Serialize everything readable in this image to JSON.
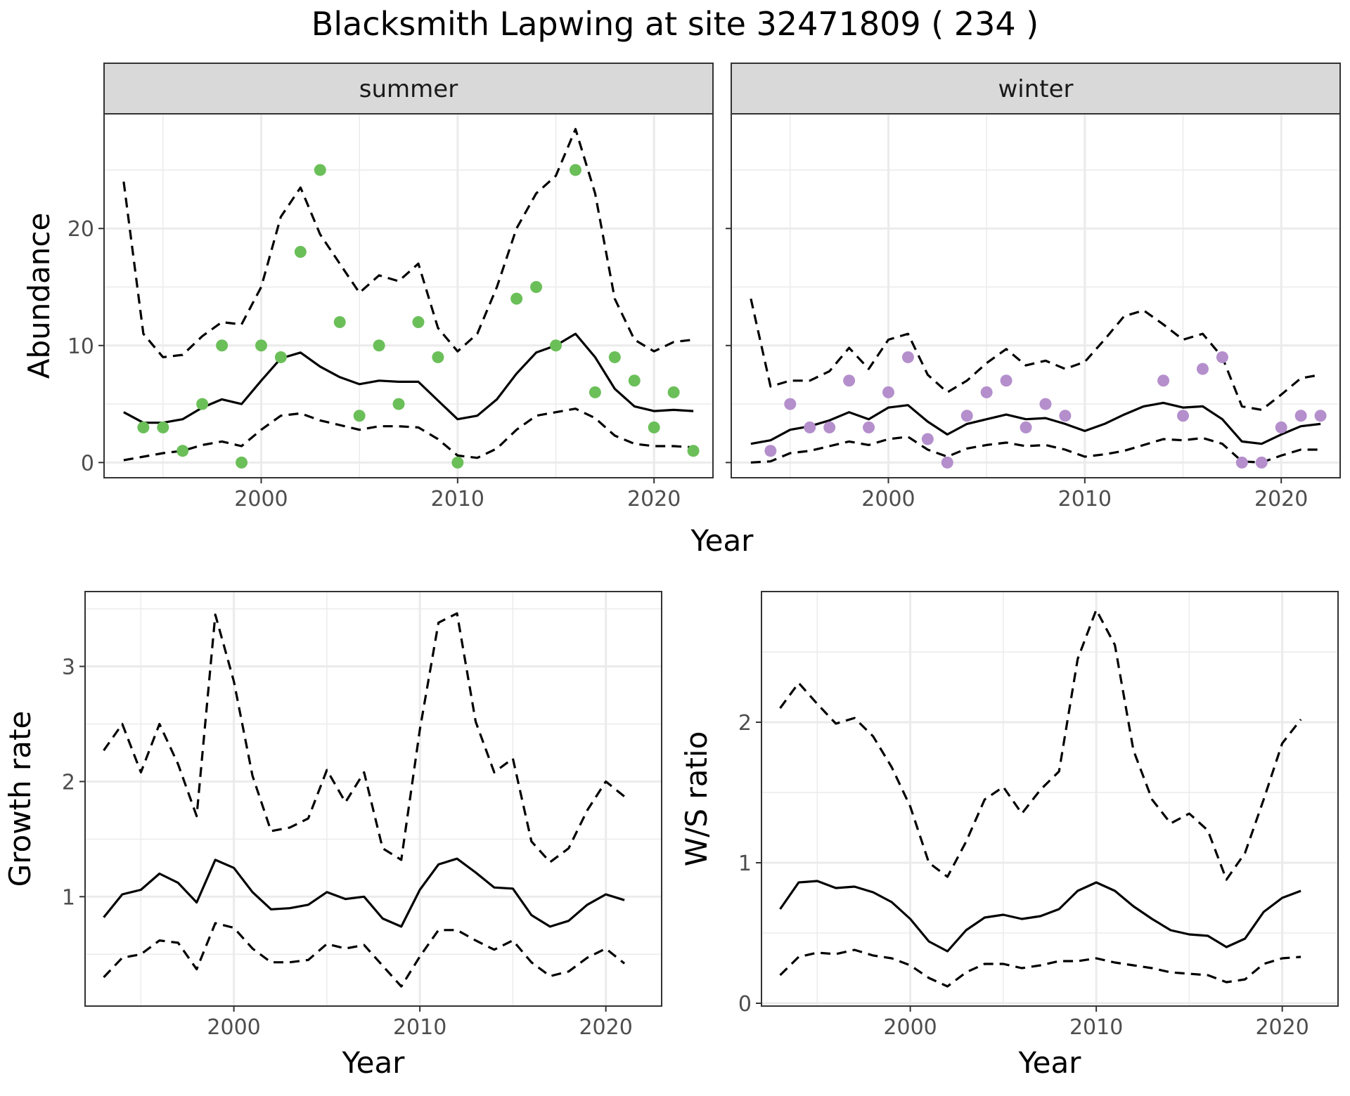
{
  "title": "Blacksmith Lapwing at site 32471809 ( 234 )",
  "colors": {
    "summer_points": "#6bbf59",
    "winter_points": "#b48fcc",
    "lines": "#000000"
  },
  "chart_data": [
    {
      "type": "line",
      "facet": "summer",
      "xlabel": "Year",
      "ylabel": "Abundance",
      "xlim": [
        1992,
        2023
      ],
      "ylim": [
        -1.3,
        29.8
      ],
      "x_ticks": [
        2000,
        2010,
        2020
      ],
      "y_ticks": [
        0,
        10,
        20
      ],
      "grid": true,
      "observed": {
        "x": [
          1994,
          1995,
          1996,
          1997,
          1998,
          1999,
          2000,
          2001,
          2002,
          2003,
          2004,
          2005,
          2006,
          2007,
          2008,
          2009,
          2010,
          2013,
          2014,
          2015,
          2016,
          2017,
          2018,
          2019,
          2020,
          2021,
          2022
        ],
        "y": [
          3,
          3,
          1,
          5,
          10,
          0,
          10,
          9,
          18,
          25,
          12,
          4,
          10,
          5,
          12,
          9,
          0,
          14,
          15,
          10,
          25,
          6,
          9,
          7,
          3,
          6,
          1
        ]
      },
      "series": [
        {
          "x": [
            1993,
            1994,
            1995,
            1996,
            1997,
            1998,
            1999,
            2000,
            2001,
            2002,
            2003,
            2004,
            2005,
            2006,
            2007,
            2008,
            2009,
            2010,
            2011,
            2012,
            2013,
            2014,
            2015,
            2016,
            2017,
            2018,
            2019,
            2020,
            2021,
            2022
          ],
          "values": [
            4.3,
            3.4,
            3.4,
            3.7,
            4.7,
            5.4,
            5.0,
            7.0,
            8.9,
            9.4,
            8.2,
            7.3,
            6.7,
            7.0,
            6.9,
            6.9,
            5.3,
            3.7,
            4.0,
            5.4,
            7.6,
            9.4,
            10.0,
            11.0,
            9.0,
            6.3,
            4.8,
            4.4,
            4.5,
            4.4
          ],
          "style": "solid"
        },
        {
          "x": [
            1993,
            1994,
            1995,
            1996,
            1997,
            1998,
            1999,
            2000,
            2001,
            2002,
            2003,
            2004,
            2005,
            2006,
            2007,
            2008,
            2009,
            2010,
            2011,
            2012,
            2013,
            2014,
            2015,
            2016,
            2017,
            2018,
            2019,
            2020,
            2021,
            2022
          ],
          "values": [
            24.0,
            11.0,
            9.0,
            9.2,
            10.8,
            12.0,
            11.8,
            15.0,
            21.0,
            23.5,
            19.5,
            17.0,
            14.5,
            16.0,
            15.5,
            17.0,
            11.5,
            9.5,
            11.0,
            15.0,
            20.0,
            23.0,
            24.5,
            28.5,
            23.0,
            14.0,
            10.5,
            9.5,
            10.3,
            10.5
          ],
          "style": "dashed"
        },
        {
          "x": [
            1993,
            1994,
            1995,
            1996,
            1997,
            1998,
            1999,
            2000,
            2001,
            2002,
            2003,
            2004,
            2005,
            2006,
            2007,
            2008,
            2009,
            2010,
            2011,
            2012,
            2013,
            2014,
            2015,
            2016,
            2017,
            2018,
            2019,
            2020,
            2021,
            2022
          ],
          "values": [
            0.2,
            0.5,
            0.8,
            1.0,
            1.5,
            1.8,
            1.4,
            2.8,
            4.0,
            4.2,
            3.6,
            3.2,
            2.8,
            3.1,
            3.1,
            3.0,
            2.0,
            0.6,
            0.4,
            1.2,
            2.8,
            4.0,
            4.3,
            4.6,
            3.8,
            2.3,
            1.6,
            1.4,
            1.4,
            1.3
          ],
          "style": "dashed"
        }
      ]
    },
    {
      "type": "line",
      "facet": "winter",
      "xlabel": "Year",
      "ylabel": "Abundance",
      "xlim": [
        1992,
        2023
      ],
      "ylim": [
        -1.3,
        29.8
      ],
      "x_ticks": [
        2000,
        2010,
        2020
      ],
      "y_ticks": [
        0,
        10,
        20
      ],
      "grid": true,
      "observed": {
        "x": [
          1994,
          1995,
          1996,
          1997,
          1998,
          1999,
          2000,
          2001,
          2002,
          2003,
          2004,
          2005,
          2006,
          2007,
          2008,
          2009,
          2014,
          2015,
          2016,
          2017,
          2018,
          2019,
          2020,
          2021,
          2022
        ],
        "y": [
          1,
          5,
          3,
          3,
          7,
          3,
          6,
          9,
          2,
          0,
          4,
          6,
          7,
          3,
          5,
          4,
          7,
          4,
          8,
          9,
          0,
          0,
          3,
          4,
          4
        ]
      },
      "series": [
        {
          "x": [
            1993,
            1994,
            1995,
            1996,
            1997,
            1998,
            1999,
            2000,
            2001,
            2002,
            2003,
            2004,
            2005,
            2006,
            2007,
            2008,
            2009,
            2010,
            2011,
            2012,
            2013,
            2014,
            2015,
            2016,
            2017,
            2018,
            2019,
            2020,
            2021,
            2022
          ],
          "values": [
            1.6,
            1.9,
            2.8,
            3.1,
            3.6,
            4.3,
            3.7,
            4.7,
            4.9,
            3.5,
            2.4,
            3.3,
            3.7,
            4.1,
            3.7,
            3.8,
            3.3,
            2.7,
            3.3,
            4.1,
            4.8,
            5.1,
            4.7,
            4.8,
            3.7,
            1.8,
            1.6,
            2.4,
            3.1,
            3.3
          ],
          "style": "solid"
        },
        {
          "x": [
            1993,
            1994,
            1995,
            1996,
            1997,
            1998,
            1999,
            2000,
            2001,
            2002,
            2003,
            2004,
            2005,
            2006,
            2007,
            2008,
            2009,
            2010,
            2011,
            2012,
            2013,
            2014,
            2015,
            2016,
            2017,
            2018,
            2019,
            2020,
            2021,
            2022
          ],
          "values": [
            14.0,
            6.5,
            7.0,
            7.0,
            7.8,
            9.8,
            8.0,
            10.5,
            11.0,
            7.5,
            6.0,
            7.0,
            8.5,
            9.7,
            8.3,
            8.7,
            8.0,
            8.6,
            10.5,
            12.5,
            13.0,
            11.8,
            10.5,
            11.0,
            9.0,
            4.8,
            4.5,
            5.8,
            7.2,
            7.5
          ],
          "style": "dashed"
        },
        {
          "x": [
            1993,
            1994,
            1995,
            1996,
            1997,
            1998,
            1999,
            2000,
            2001,
            2002,
            2003,
            2004,
            2005,
            2006,
            2007,
            2008,
            2009,
            2010,
            2011,
            2012,
            2013,
            2014,
            2015,
            2016,
            2017,
            2018,
            2019,
            2020,
            2021,
            2022
          ],
          "values": [
            0.0,
            0.1,
            0.8,
            1.0,
            1.4,
            1.8,
            1.5,
            2.0,
            2.2,
            1.1,
            0.5,
            1.2,
            1.5,
            1.7,
            1.4,
            1.5,
            1.1,
            0.5,
            0.7,
            1.0,
            1.5,
            2.0,
            1.9,
            2.1,
            1.6,
            0.1,
            0.0,
            0.6,
            1.1,
            1.1
          ],
          "style": "dashed"
        }
      ]
    },
    {
      "type": "line",
      "xlabel": "Year",
      "ylabel": "Growth rate",
      "xlim": [
        1992,
        2023
      ],
      "ylim": [
        0.05,
        3.65
      ],
      "x_ticks": [
        2000,
        2010,
        2020
      ],
      "y_ticks": [
        1,
        2,
        3
      ],
      "grid": true,
      "series": [
        {
          "x": [
            1993,
            1994,
            1995,
            1996,
            1997,
            1998,
            1999,
            2000,
            2001,
            2002,
            2003,
            2004,
            2005,
            2006,
            2007,
            2008,
            2009,
            2010,
            2011,
            2012,
            2013,
            2014,
            2015,
            2016,
            2017,
            2018,
            2019,
            2020,
            2021
          ],
          "values": [
            0.82,
            1.02,
            1.06,
            1.2,
            1.12,
            0.95,
            1.32,
            1.25,
            1.04,
            0.89,
            0.9,
            0.93,
            1.04,
            0.98,
            1.0,
            0.81,
            0.74,
            1.06,
            1.28,
            1.33,
            1.21,
            1.08,
            1.07,
            0.84,
            0.74,
            0.79,
            0.93,
            1.02,
            0.97
          ],
          "style": "solid"
        },
        {
          "x": [
            1993,
            1994,
            1995,
            1996,
            1997,
            1998,
            1999,
            2000,
            2001,
            2002,
            2003,
            2004,
            2005,
            2006,
            2007,
            2008,
            2009,
            2010,
            2011,
            2012,
            2013,
            2014,
            2015,
            2016,
            2017,
            2018,
            2019,
            2020,
            2021
          ],
          "values": [
            2.27,
            2.5,
            2.08,
            2.5,
            2.15,
            1.7,
            3.45,
            2.87,
            2.05,
            1.57,
            1.6,
            1.68,
            2.1,
            1.82,
            2.08,
            1.42,
            1.32,
            2.45,
            3.38,
            3.46,
            2.52,
            2.08,
            2.2,
            1.48,
            1.3,
            1.42,
            1.75,
            2.0,
            1.87
          ],
          "style": "dashed"
        },
        {
          "x": [
            1993,
            1994,
            1995,
            1996,
            1997,
            1998,
            1999,
            2000,
            2001,
            2002,
            2003,
            2004,
            2005,
            2006,
            2007,
            2008,
            2009,
            2010,
            2011,
            2012,
            2013,
            2014,
            2015,
            2016,
            2017,
            2018,
            2019,
            2020,
            2021
          ],
          "values": [
            0.3,
            0.47,
            0.5,
            0.62,
            0.6,
            0.37,
            0.77,
            0.73,
            0.55,
            0.43,
            0.43,
            0.45,
            0.59,
            0.55,
            0.58,
            0.4,
            0.22,
            0.48,
            0.71,
            0.71,
            0.62,
            0.54,
            0.62,
            0.43,
            0.31,
            0.35,
            0.47,
            0.55,
            0.42
          ],
          "style": "dashed"
        }
      ]
    },
    {
      "type": "line",
      "xlabel": "Year",
      "ylabel": "W/S ratio",
      "xlim": [
        1992,
        2023
      ],
      "ylim": [
        -0.02,
        2.93
      ],
      "x_ticks": [
        2000,
        2010,
        2020
      ],
      "y_ticks": [
        0,
        1,
        2
      ],
      "grid": true,
      "series": [
        {
          "x": [
            1993,
            1994,
            1995,
            1996,
            1997,
            1998,
            1999,
            2000,
            2001,
            2002,
            2003,
            2004,
            2005,
            2006,
            2007,
            2008,
            2009,
            2010,
            2011,
            2012,
            2013,
            2014,
            2015,
            2016,
            2017,
            2018,
            2019,
            2020,
            2021
          ],
          "values": [
            0.67,
            0.86,
            0.87,
            0.82,
            0.83,
            0.79,
            0.72,
            0.6,
            0.44,
            0.37,
            0.52,
            0.61,
            0.63,
            0.6,
            0.62,
            0.67,
            0.8,
            0.86,
            0.8,
            0.69,
            0.6,
            0.52,
            0.49,
            0.48,
            0.4,
            0.46,
            0.65,
            0.75,
            0.8
          ],
          "style": "solid"
        },
        {
          "x": [
            1993,
            1994,
            1995,
            1996,
            1997,
            1998,
            1999,
            2000,
            2001,
            2002,
            2003,
            2004,
            2005,
            2006,
            2007,
            2008,
            2009,
            2010,
            2011,
            2012,
            2013,
            2014,
            2015,
            2016,
            2017,
            2018,
            2019,
            2020,
            2021
          ],
          "values": [
            2.1,
            2.28,
            2.13,
            1.99,
            2.03,
            1.9,
            1.68,
            1.4,
            1.0,
            0.9,
            1.15,
            1.45,
            1.54,
            1.35,
            1.52,
            1.65,
            2.45,
            2.8,
            2.55,
            1.8,
            1.45,
            1.28,
            1.35,
            1.23,
            0.88,
            1.07,
            1.45,
            1.85,
            2.02
          ],
          "style": "dashed"
        },
        {
          "x": [
            1993,
            1994,
            1995,
            1996,
            1997,
            1998,
            1999,
            2000,
            2001,
            2002,
            2003,
            2004,
            2005,
            2006,
            2007,
            2008,
            2009,
            2010,
            2011,
            2012,
            2013,
            2014,
            2015,
            2016,
            2017,
            2018,
            2019,
            2020,
            2021
          ],
          "values": [
            0.2,
            0.33,
            0.36,
            0.35,
            0.38,
            0.34,
            0.32,
            0.27,
            0.18,
            0.12,
            0.22,
            0.28,
            0.28,
            0.25,
            0.27,
            0.3,
            0.3,
            0.32,
            0.29,
            0.27,
            0.25,
            0.22,
            0.21,
            0.2,
            0.15,
            0.17,
            0.28,
            0.32,
            0.33
          ],
          "style": "dashed"
        }
      ]
    }
  ]
}
